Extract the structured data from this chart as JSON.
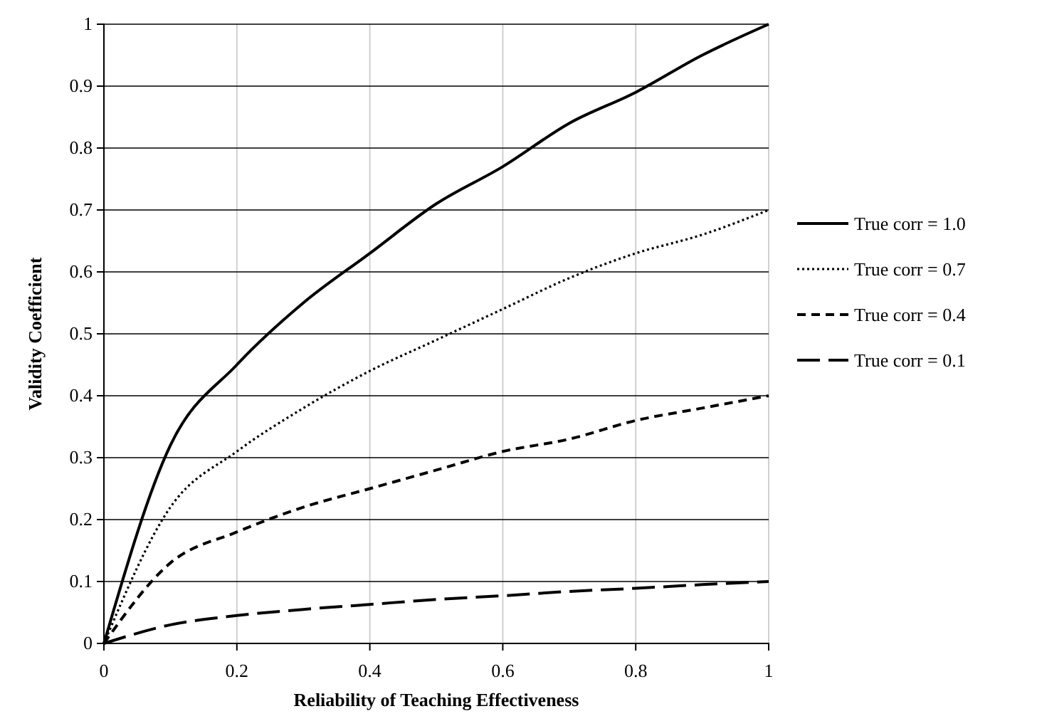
{
  "chart_data": {
    "type": "line",
    "xlabel": "Reliability of Teaching Effectiveness",
    "ylabel": "Validity Coefficient",
    "x": [
      0,
      0.1,
      0.2,
      0.3,
      0.4,
      0.5,
      0.6,
      0.7,
      0.8,
      0.9,
      1
    ],
    "series": [
      {
        "name": "True corr = 1.0",
        "color": "#000000",
        "line_style": "solid",
        "values": [
          0,
          0.32,
          0.45,
          0.55,
          0.63,
          0.71,
          0.77,
          0.84,
          0.89,
          0.95,
          1
        ]
      },
      {
        "name": "True corr = 0.7",
        "color": "#000000",
        "line_style": "dotted",
        "values": [
          0,
          0.22,
          0.31,
          0.38,
          0.44,
          0.49,
          0.54,
          0.59,
          0.63,
          0.66,
          0.7
        ]
      },
      {
        "name": "True corr = 0.4",
        "color": "#000000",
        "line_style": "dashed",
        "values": [
          0,
          0.13,
          0.18,
          0.22,
          0.25,
          0.28,
          0.31,
          0.33,
          0.36,
          0.38,
          0.4
        ]
      },
      {
        "name": "True corr = 0.1",
        "color": "#000000",
        "line_style": "longdash",
        "values": [
          0,
          0.03,
          0.045,
          0.055,
          0.063,
          0.071,
          0.077,
          0.084,
          0.089,
          0.095,
          0.1
        ]
      }
    ],
    "xlim": [
      0,
      1
    ],
    "xticks": [
      0,
      0.2,
      0.4,
      0.6,
      0.8,
      1
    ],
    "ylim": [
      0,
      1
    ],
    "yticks": [
      0,
      0.1,
      0.2,
      0.3,
      0.4,
      0.5,
      0.6,
      0.7,
      0.8,
      0.9,
      1
    ],
    "grid": true,
    "legend": "right",
    "marker": "none"
  }
}
